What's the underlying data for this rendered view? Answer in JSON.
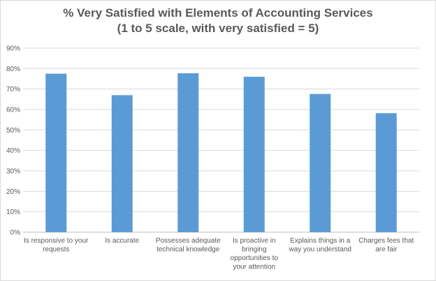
{
  "chart_data": {
    "type": "bar",
    "title": "% Very Satisfied with Elements of Accounting Services",
    "subtitle": "(1 to 5 scale, with very satisfied = 5)",
    "categories": [
      [
        "Is responsive to your",
        "requests"
      ],
      [
        "Is accurate"
      ],
      [
        "Possesses adequate",
        "technical knowledge"
      ],
      [
        "Is proactive in",
        "bringing",
        "opportunities to",
        "your attention"
      ],
      [
        "Explains things in a",
        "way you understand"
      ],
      [
        "Charges fees that",
        "are fair"
      ]
    ],
    "values": [
      77.5,
      67,
      77.7,
      76,
      67.6,
      58.2
    ],
    "ylim": [
      0,
      90
    ],
    "yticks": [
      "0%",
      "10%",
      "20%",
      "30%",
      "40%",
      "50%",
      "60%",
      "70%",
      "80%",
      "90%"
    ],
    "bar_color": "#5b9bd5",
    "grid": true,
    "legend": "none"
  }
}
